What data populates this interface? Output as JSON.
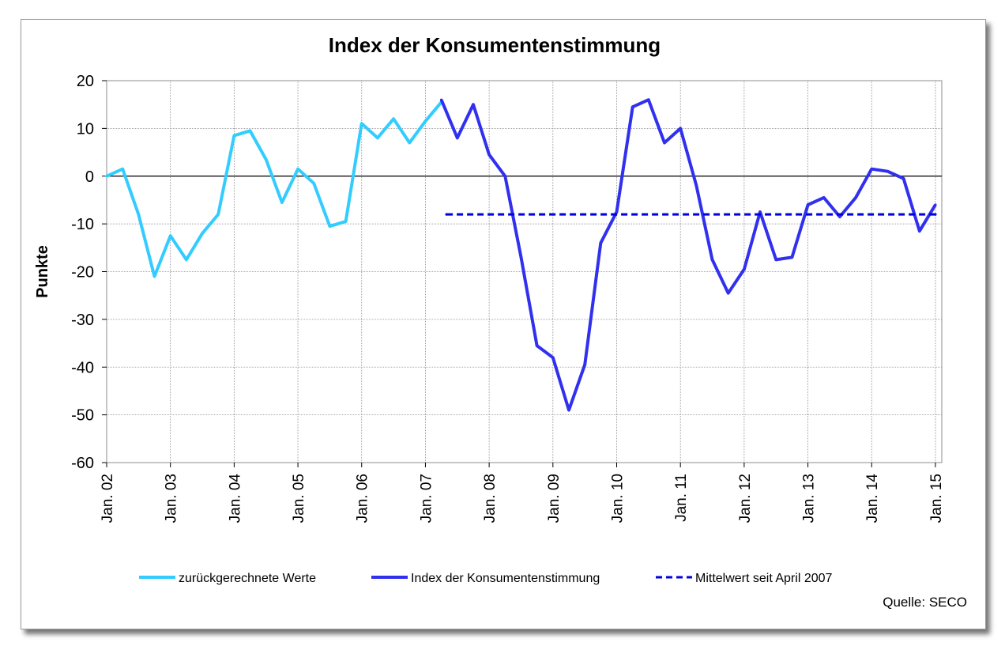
{
  "chart_data": {
    "type": "line",
    "title": "Index der Konsumentenstimmung",
    "ylabel": "Punkte",
    "xlabel": "",
    "ylim": [
      -60,
      20
    ],
    "yticks": [
      20,
      10,
      0,
      -10,
      -20,
      -30,
      -40,
      -50,
      -60
    ],
    "xlim": [
      2002,
      2015.1
    ],
    "xticks": [
      {
        "x": 2002,
        "label": "Jan. 02"
      },
      {
        "x": 2003,
        "label": "Jan. 03"
      },
      {
        "x": 2004,
        "label": "Jan. 04"
      },
      {
        "x": 2005,
        "label": "Jan. 05"
      },
      {
        "x": 2006,
        "label": "Jan. 06"
      },
      {
        "x": 2007,
        "label": "Jan. 07"
      },
      {
        "x": 2008,
        "label": "Jan. 08"
      },
      {
        "x": 2009,
        "label": "Jan. 09"
      },
      {
        "x": 2010,
        "label": "Jan. 10"
      },
      {
        "x": 2011,
        "label": "Jan. 11"
      },
      {
        "x": 2012,
        "label": "Jan. 12"
      },
      {
        "x": 2013,
        "label": "Jan. 13"
      },
      {
        "x": 2014,
        "label": "Jan. 14"
      },
      {
        "x": 2015,
        "label": "Jan. 15"
      }
    ],
    "grid": true,
    "legend_position": "bottom",
    "series": [
      {
        "name": "zurückgerechnete Werte",
        "color": "#33ccff",
        "style": "solid",
        "points": [
          [
            2002.0,
            0
          ],
          [
            2002.25,
            1.5
          ],
          [
            2002.5,
            -8
          ],
          [
            2002.75,
            -21
          ],
          [
            2003.0,
            -12.5
          ],
          [
            2003.25,
            -17.5
          ],
          [
            2003.5,
            -12
          ],
          [
            2003.75,
            -8
          ],
          [
            2004.0,
            8.5
          ],
          [
            2004.25,
            9.5
          ],
          [
            2004.5,
            3.5
          ],
          [
            2004.75,
            -5.5
          ],
          [
            2005.0,
            1.5
          ],
          [
            2005.25,
            -1.5
          ],
          [
            2005.5,
            -10.5
          ],
          [
            2005.75,
            -9.5
          ],
          [
            2006.0,
            11
          ],
          [
            2006.25,
            8
          ],
          [
            2006.5,
            12
          ],
          [
            2006.75,
            7
          ],
          [
            2007.0,
            11.5
          ],
          [
            2007.25,
            15.5
          ]
        ]
      },
      {
        "name": "Index der Konsumentenstimmung",
        "color": "#3030ee",
        "style": "solid",
        "points": [
          [
            2007.25,
            16
          ],
          [
            2007.5,
            8
          ],
          [
            2007.75,
            15
          ],
          [
            2008.0,
            4.5
          ],
          [
            2008.25,
            0
          ],
          [
            2008.5,
            -17
          ],
          [
            2008.75,
            -35.5
          ],
          [
            2009.0,
            -38
          ],
          [
            2009.25,
            -49
          ],
          [
            2009.5,
            -39.5
          ],
          [
            2009.75,
            -14
          ],
          [
            2010.0,
            -7.5
          ],
          [
            2010.25,
            14.5
          ],
          [
            2010.5,
            16
          ],
          [
            2010.75,
            7
          ],
          [
            2011.0,
            10
          ],
          [
            2011.25,
            -2
          ],
          [
            2011.5,
            -17.5
          ],
          [
            2011.75,
            -24.5
          ],
          [
            2012.0,
            -19.5
          ],
          [
            2012.25,
            -7.5
          ],
          [
            2012.5,
            -17.5
          ],
          [
            2012.75,
            -17
          ],
          [
            2013.0,
            -6
          ],
          [
            2013.25,
            -4.5
          ],
          [
            2013.5,
            -8.5
          ],
          [
            2013.75,
            -4.5
          ],
          [
            2014.0,
            1.5
          ],
          [
            2014.25,
            1
          ],
          [
            2014.5,
            -0.5
          ],
          [
            2014.75,
            -11.5
          ],
          [
            2015.0,
            -6
          ]
        ]
      },
      {
        "name": "Mittelwert seit April 2007",
        "color": "#0000dd",
        "style": "dashed",
        "points": [
          [
            2007.33,
            -8
          ],
          [
            2015.0,
            -8
          ]
        ]
      }
    ],
    "source": "Quelle: SECO"
  }
}
